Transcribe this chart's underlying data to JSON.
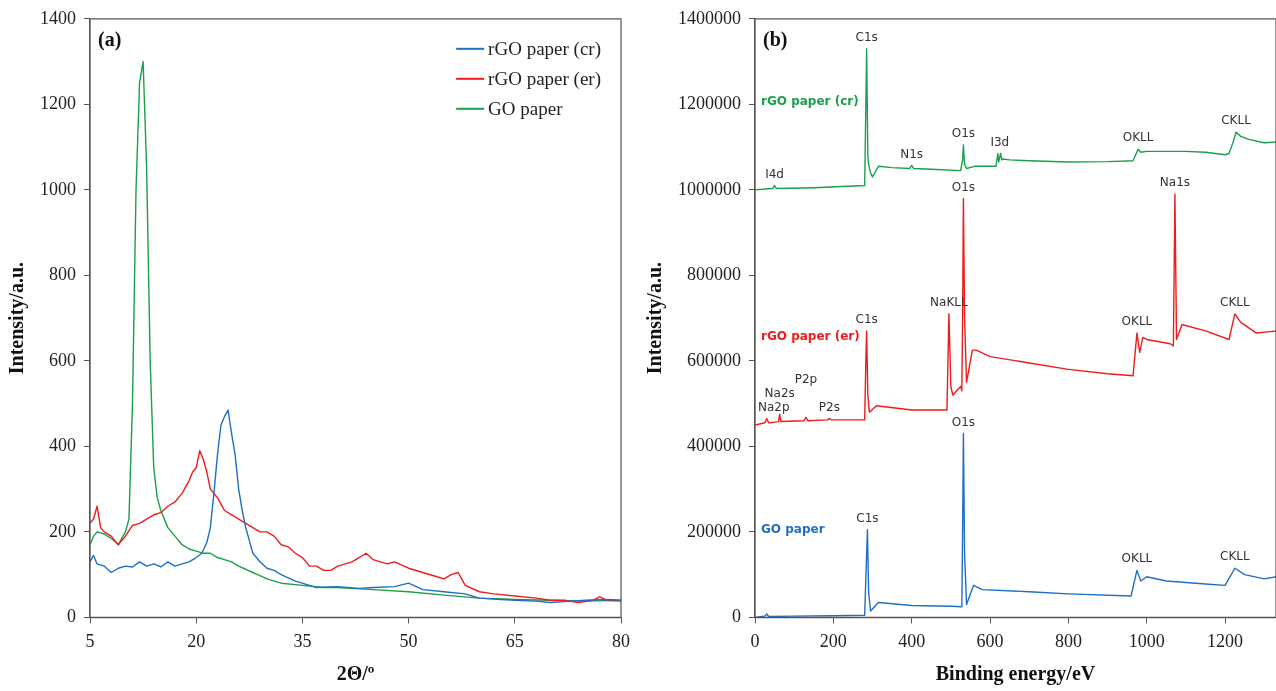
{
  "chart_data": [
    {
      "type": "line",
      "title": "(a)",
      "xlabel": "2Θ/º",
      "ylabel": "Intensity/a.u.",
      "xlim": [
        5,
        80
      ],
      "xticks": [
        5,
        20,
        35,
        50,
        65,
        80
      ],
      "ylim": [
        0,
        1400
      ],
      "yticks": [
        0,
        200,
        400,
        600,
        800,
        1000,
        1200,
        1400
      ],
      "legend": "top right",
      "series": [
        {
          "name": "rGO paper (cr)",
          "color": "#1f6fc4",
          "x": [
            5,
            5.5,
            6,
            7,
            8,
            9,
            10,
            11,
            12,
            13,
            14,
            15,
            16,
            17,
            18,
            19,
            20,
            20.8,
            21.5,
            22,
            22.5,
            23,
            23.5,
            24,
            24.5,
            25,
            25.5,
            26,
            26.5,
            27,
            27.5,
            28,
            29,
            30,
            31,
            32,
            34,
            36,
            37,
            40,
            43,
            45,
            48,
            50,
            52,
            55,
            58,
            60,
            63,
            65,
            68,
            70,
            73,
            75,
            78,
            80
          ],
          "values": [
            130,
            145,
            125,
            120,
            105,
            115,
            120,
            118,
            130,
            120,
            125,
            118,
            130,
            120,
            125,
            130,
            140,
            150,
            175,
            210,
            290,
            380,
            450,
            470,
            485,
            430,
            380,
            300,
            250,
            210,
            180,
            150,
            130,
            115,
            110,
            100,
            85,
            75,
            70,
            72,
            68,
            70,
            72,
            80,
            65,
            60,
            55,
            45,
            42,
            40,
            38,
            35,
            38,
            40,
            42,
            40
          ]
        },
        {
          "name": "rGO paper (er)",
          "color": "#ee1c1c",
          "x": [
            5,
            5.5,
            6,
            6.5,
            7,
            8,
            9,
            10,
            11,
            12,
            13,
            14,
            15,
            16,
            17,
            18,
            19,
            19.5,
            20,
            20.5,
            21,
            21.5,
            22,
            23,
            24,
            25,
            26,
            27,
            28,
            29,
            30,
            31,
            32,
            33,
            34,
            35,
            36,
            37,
            38,
            39,
            40,
            42,
            43,
            44,
            45,
            46,
            47,
            48,
            50,
            52,
            54,
            55,
            56,
            57,
            58,
            60,
            62,
            65,
            68,
            70,
            72,
            74,
            76,
            77,
            78,
            80
          ],
          "values": [
            220,
            230,
            260,
            210,
            200,
            190,
            170,
            190,
            215,
            220,
            230,
            240,
            245,
            260,
            270,
            290,
            320,
            340,
            350,
            390,
            370,
            340,
            300,
            280,
            250,
            240,
            230,
            220,
            210,
            200,
            200,
            190,
            170,
            165,
            150,
            140,
            120,
            120,
            110,
            110,
            120,
            130,
            140,
            150,
            135,
            130,
            125,
            130,
            115,
            105,
            95,
            90,
            100,
            105,
            75,
            60,
            55,
            50,
            45,
            40,
            40,
            35,
            40,
            48,
            40,
            38
          ]
        },
        {
          "name": "GO paper",
          "color": "#1aa04a",
          "x": [
            5,
            5.5,
            6,
            7,
            8,
            9,
            10,
            10.5,
            11,
            11.5,
            12,
            12.5,
            13,
            13.5,
            14,
            14.5,
            15,
            16,
            17,
            18,
            19,
            20,
            21,
            22,
            23,
            24,
            25,
            26,
            28,
            30,
            32,
            35,
            38,
            40,
            45,
            50,
            55,
            60,
            65,
            70,
            75,
            80
          ],
          "values": [
            170,
            190,
            200,
            195,
            185,
            170,
            200,
            230,
            500,
            1000,
            1250,
            1300,
            1050,
            600,
            350,
            280,
            250,
            210,
            190,
            170,
            160,
            155,
            150,
            150,
            140,
            135,
            130,
            120,
            105,
            90,
            80,
            75,
            70,
            70,
            65,
            60,
            52,
            45,
            42,
            40,
            38,
            40
          ]
        }
      ]
    },
    {
      "type": "line",
      "title": "(b)",
      "xlabel": "Binding energy/eV",
      "ylabel": "Intensity/a.u.",
      "xlim": [
        0,
        1330
      ],
      "xticks": [
        0,
        200,
        400,
        600,
        800,
        1000,
        1200
      ],
      "ylim": [
        0,
        1400000
      ],
      "yticks": [
        0,
        200000,
        400000,
        600000,
        800000,
        1000000,
        1200000,
        1400000
      ],
      "annotations": [
        {
          "text": "I4d",
          "x": 50,
          "y": 1010000
        },
        {
          "text": "C1s",
          "x": 285,
          "y": 1330000
        },
        {
          "text": "N1s",
          "x": 400,
          "y": 1055000
        },
        {
          "text": "O1s",
          "x": 532,
          "y": 1105000
        },
        {
          "text": "I3d",
          "x": 625,
          "y": 1085000
        },
        {
          "text": "OKLL",
          "x": 978,
          "y": 1095000
        },
        {
          "text": "CKLL",
          "x": 1228,
          "y": 1135000
        },
        {
          "text": "Na2p",
          "x": 30,
          "y": 465000
        },
        {
          "text": "Na2s",
          "x": 63,
          "y": 475000
        },
        {
          "text": "P2p",
          "x": 130,
          "y": 468000
        },
        {
          "text": "P2s",
          "x": 190,
          "y": 465000
        },
        {
          "text": "C1s",
          "x": 285,
          "y": 670000
        },
        {
          "text": "NaKLL",
          "x": 495,
          "y": 710000
        },
        {
          "text": "O1s",
          "x": 532,
          "y": 980000
        },
        {
          "text": "OKLL",
          "x": 975,
          "y": 665000
        },
        {
          "text": "Na1s",
          "x": 1072,
          "y": 990000
        },
        {
          "text": "CKLL",
          "x": 1225,
          "y": 710000
        },
        {
          "text": "C1s",
          "x": 287,
          "y": 205000
        },
        {
          "text": "O1s",
          "x": 532,
          "y": 430000
        },
        {
          "text": "OKLL",
          "x": 975,
          "y": 110000
        },
        {
          "text": "CKLL",
          "x": 1225,
          "y": 115000
        }
      ],
      "series": [
        {
          "name": "rGO paper (cr)",
          "color": "#1aa04a",
          "x": [
            0,
            45,
            50,
            55,
            150,
            280,
            283,
            285,
            288,
            290,
            295,
            300,
            315,
            350,
            395,
            400,
            405,
            450,
            525,
            530,
            532,
            535,
            540,
            560,
            600,
            615,
            620,
            622,
            627,
            630,
            633,
            650,
            700,
            800,
            900,
            965,
            978,
            985,
            1000,
            1100,
            1150,
            1200,
            1210,
            1220,
            1228,
            1240,
            1260,
            1300,
            1330
          ],
          "values": [
            1000000,
            1003000,
            1010000,
            1003000,
            1005000,
            1010000,
            1200000,
            1330000,
            1080000,
            1060000,
            1040000,
            1030000,
            1055000,
            1052000,
            1050000,
            1057000,
            1050000,
            1048000,
            1045000,
            1070000,
            1105000,
            1060000,
            1050000,
            1055000,
            1055000,
            1055000,
            1085000,
            1065000,
            1085000,
            1070000,
            1072000,
            1070000,
            1068000,
            1065000,
            1066000,
            1068000,
            1095000,
            1088000,
            1090000,
            1090000,
            1088000,
            1082000,
            1085000,
            1110000,
            1135000,
            1125000,
            1118000,
            1110000,
            1112000
          ]
        },
        {
          "name": "rGO paper (er)",
          "color": "#ee1c1c",
          "x": [
            0,
            25,
            30,
            35,
            60,
            63,
            66,
            125,
            130,
            135,
            185,
            190,
            195,
            280,
            283,
            285,
            288,
            292,
            310,
            400,
            490,
            495,
            500,
            505,
            525,
            528,
            530,
            532,
            535,
            540,
            555,
            565,
            600,
            700,
            800,
            900,
            965,
            975,
            982,
            990,
            1000,
            1060,
            1068,
            1072,
            1076,
            1090,
            1150,
            1210,
            1225,
            1240,
            1280,
            1330
          ],
          "values": [
            450000,
            455000,
            465000,
            455000,
            458000,
            475000,
            458000,
            460000,
            468000,
            460000,
            462000,
            465000,
            462000,
            462000,
            600000,
            670000,
            520000,
            480000,
            495000,
            485000,
            485000,
            710000,
            540000,
            520000,
            540000,
            530000,
            700000,
            980000,
            700000,
            550000,
            625000,
            625000,
            610000,
            595000,
            580000,
            570000,
            565000,
            665000,
            620000,
            655000,
            650000,
            640000,
            635000,
            990000,
            650000,
            685000,
            670000,
            650000,
            710000,
            690000,
            665000,
            670000
          ]
        },
        {
          "name": "GO paper",
          "color": "#1f6fc4",
          "x": [
            0,
            25,
            30,
            35,
            100,
            200,
            280,
            284,
            287,
            290,
            295,
            315,
            400,
            500,
            528,
            530,
            532,
            535,
            540,
            558,
            580,
            700,
            800,
            960,
            975,
            985,
            1000,
            1050,
            1150,
            1200,
            1225,
            1250,
            1300,
            1330
          ],
          "values": [
            0,
            3000,
            8000,
            2000,
            3000,
            4000,
            5000,
            120000,
            205000,
            60000,
            15000,
            35000,
            28000,
            26000,
            25000,
            200000,
            430000,
            150000,
            30000,
            75000,
            65000,
            60000,
            55000,
            50000,
            110000,
            85000,
            95000,
            85000,
            78000,
            75000,
            115000,
            100000,
            90000,
            95000
          ]
        }
      ]
    }
  ]
}
